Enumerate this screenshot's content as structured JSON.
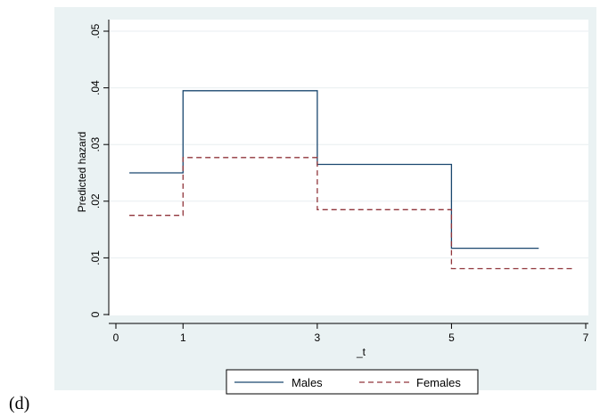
{
  "panel_label": "(d)",
  "chart_data": {
    "type": "line",
    "step": true,
    "xlabel": "_t",
    "ylabel": "Predicted hazard",
    "xlim": [
      0,
      7
    ],
    "ylim": [
      0,
      0.05
    ],
    "x_ticks": [
      0,
      1,
      3,
      5,
      7
    ],
    "x_tick_labels": [
      "0",
      "1",
      "3",
      "5",
      "7"
    ],
    "y_ticks": [
      0,
      0.01,
      0.02,
      0.03,
      0.04,
      0.05
    ],
    "y_tick_labels": [
      "0",
      ".01",
      ".02",
      ".03",
      ".04",
      ".05"
    ],
    "grid": "horizontal",
    "legend_position": "bottom",
    "background_color": "#eaf2f3",
    "series": [
      {
        "name": "Males",
        "style": "solid",
        "color": "#1a476f",
        "x": [
          0.2,
          1,
          1,
          3,
          3,
          5,
          5,
          6.3
        ],
        "y": [
          0.025,
          0.025,
          0.0395,
          0.0395,
          0.0265,
          0.0265,
          0.0117,
          0.0117
        ]
      },
      {
        "name": "Females",
        "style": "dashed",
        "color": "#90353b",
        "x": [
          0.2,
          1,
          1,
          3,
          3,
          5,
          5,
          6.8
        ],
        "y": [
          0.0175,
          0.0175,
          0.0277,
          0.0277,
          0.0185,
          0.0185,
          0.0081,
          0.0081
        ]
      }
    ]
  }
}
